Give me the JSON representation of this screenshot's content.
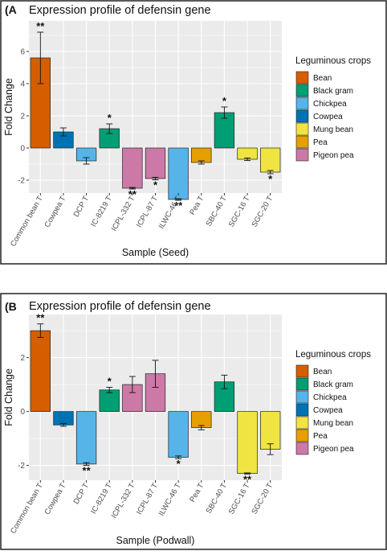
{
  "colors": {
    "Bean": "#D55E00",
    "Black gram": "#009E73",
    "Chickpea": "#56B4E9",
    "Cowpea": "#0072B2",
    "Mung bean": "#F0E442",
    "Pea": "#E69F00",
    "Pigeon pea": "#CC79A7",
    "panel_bg": "#EBEBEB",
    "grid": "#FFFFFF"
  },
  "chart_data": [
    {
      "type": "bar",
      "panel_label": "(A",
      "title": "Expression profile of defensin gene",
      "xlabel": "Sample (Seed)",
      "ylabel": "Fold Change",
      "ylim": [
        -2.8,
        7.9
      ],
      "yticks": [
        -2,
        0,
        2,
        4,
        6
      ],
      "grid": true,
      "legend_title": "Leguminous crops",
      "legend_position": "right",
      "legend_items": [
        "Bean",
        "Black gram",
        "Chickpea",
        "Cowpea",
        "Mung bean",
        "Pea",
        "Pigeon pea"
      ],
      "categories": [
        "Common bean T",
        "Cowpea T",
        "DCP T",
        "IC-8219 T",
        "ICPL-332 T",
        "ICPL-87 T",
        "ILWC-46 T",
        "Pea T",
        "SBC-40 T",
        "SGC-16 T",
        "SGC-20 T"
      ],
      "crops": [
        "Bean",
        "Cowpea",
        "Chickpea",
        "Black gram",
        "Pigeon pea",
        "Pigeon pea",
        "Chickpea",
        "Pea",
        "Black gram",
        "Mung bean",
        "Mung bean"
      ],
      "values": [
        5.6,
        1.0,
        -0.8,
        1.2,
        -2.5,
        -1.9,
        -3.2,
        -0.9,
        2.2,
        -0.7,
        -1.5
      ],
      "errors": [
        1.6,
        0.25,
        0.2,
        0.3,
        0.05,
        0.08,
        0.05,
        0.1,
        0.35,
        0.08,
        0.1
      ],
      "significance": [
        "**",
        "",
        "",
        "*",
        "**",
        "*",
        "**",
        "",
        "*",
        "",
        "*"
      ]
    },
    {
      "type": "bar",
      "panel_label": "(B",
      "title": "Expression profile of defensin gene",
      "xlabel": "Sample (Podwall)",
      "ylabel": "Fold Change",
      "ylim": [
        -2.55,
        3.6
      ],
      "yticks": [
        -2,
        0,
        2
      ],
      "grid": true,
      "legend_title": "Leguminous crops",
      "legend_position": "right",
      "legend_items": [
        "Bean",
        "Black gram",
        "Chickpea",
        "Cowpea",
        "Mung bean",
        "Pea",
        "Pigeon pea"
      ],
      "categories": [
        "Common bean T",
        "Cowpea T",
        "DCP T",
        "IC-8219 T",
        "ICPL-332 T",
        "ICPL-87 T",
        "ILWC-46 T",
        "Pea T",
        "SBC-40 T",
        "SGC-16 T",
        "SGC-20 T"
      ],
      "crops": [
        "Bean",
        "Cowpea",
        "Chickpea",
        "Black gram",
        "Pigeon pea",
        "Pigeon pea",
        "Chickpea",
        "Pea",
        "Black gram",
        "Mung bean",
        "Mung bean"
      ],
      "values": [
        3.0,
        -0.5,
        -1.95,
        0.8,
        1.0,
        1.4,
        -1.7,
        -0.6,
        1.1,
        -2.3,
        -1.4
      ],
      "errors": [
        0.25,
        0.05,
        0.05,
        0.1,
        0.3,
        0.5,
        0.05,
        0.08,
        0.25,
        0.02,
        0.2
      ],
      "significance": [
        "**",
        "",
        "**",
        "*",
        "",
        "",
        "*",
        "",
        "",
        "**",
        ""
      ]
    }
  ]
}
